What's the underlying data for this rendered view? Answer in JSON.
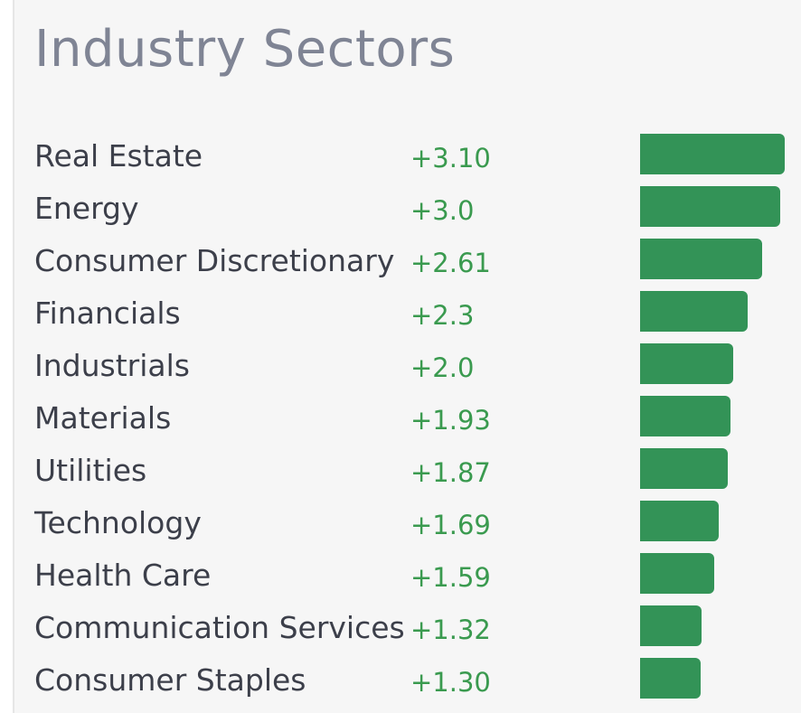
{
  "title": "Industry Sectors",
  "colors": {
    "bar": "#339357",
    "value_text": "#3a9a4f",
    "title_text": "#7f8494",
    "label_text": "#3c3f4a"
  },
  "sectors": [
    {
      "name": "Real Estate",
      "value": "+3.10",
      "change": 3.1
    },
    {
      "name": "Energy",
      "value": "+3.0",
      "change": 3.0
    },
    {
      "name": "Consumer Discretionary",
      "value": "+2.61",
      "change": 2.61
    },
    {
      "name": "Financials",
      "value": "+2.3",
      "change": 2.3
    },
    {
      "name": "Industrials",
      "value": "+2.0",
      "change": 2.0
    },
    {
      "name": "Materials",
      "value": "+1.93",
      "change": 1.93
    },
    {
      "name": "Utilities",
      "value": "+1.87",
      "change": 1.87
    },
    {
      "name": "Technology",
      "value": "+1.69",
      "change": 1.69
    },
    {
      "name": "Health Care",
      "value": "+1.59",
      "change": 1.59
    },
    {
      "name": "Communication Services",
      "value": "+1.32",
      "change": 1.32
    },
    {
      "name": "Consumer Staples",
      "value": "+1.30",
      "change": 1.3
    }
  ]
}
